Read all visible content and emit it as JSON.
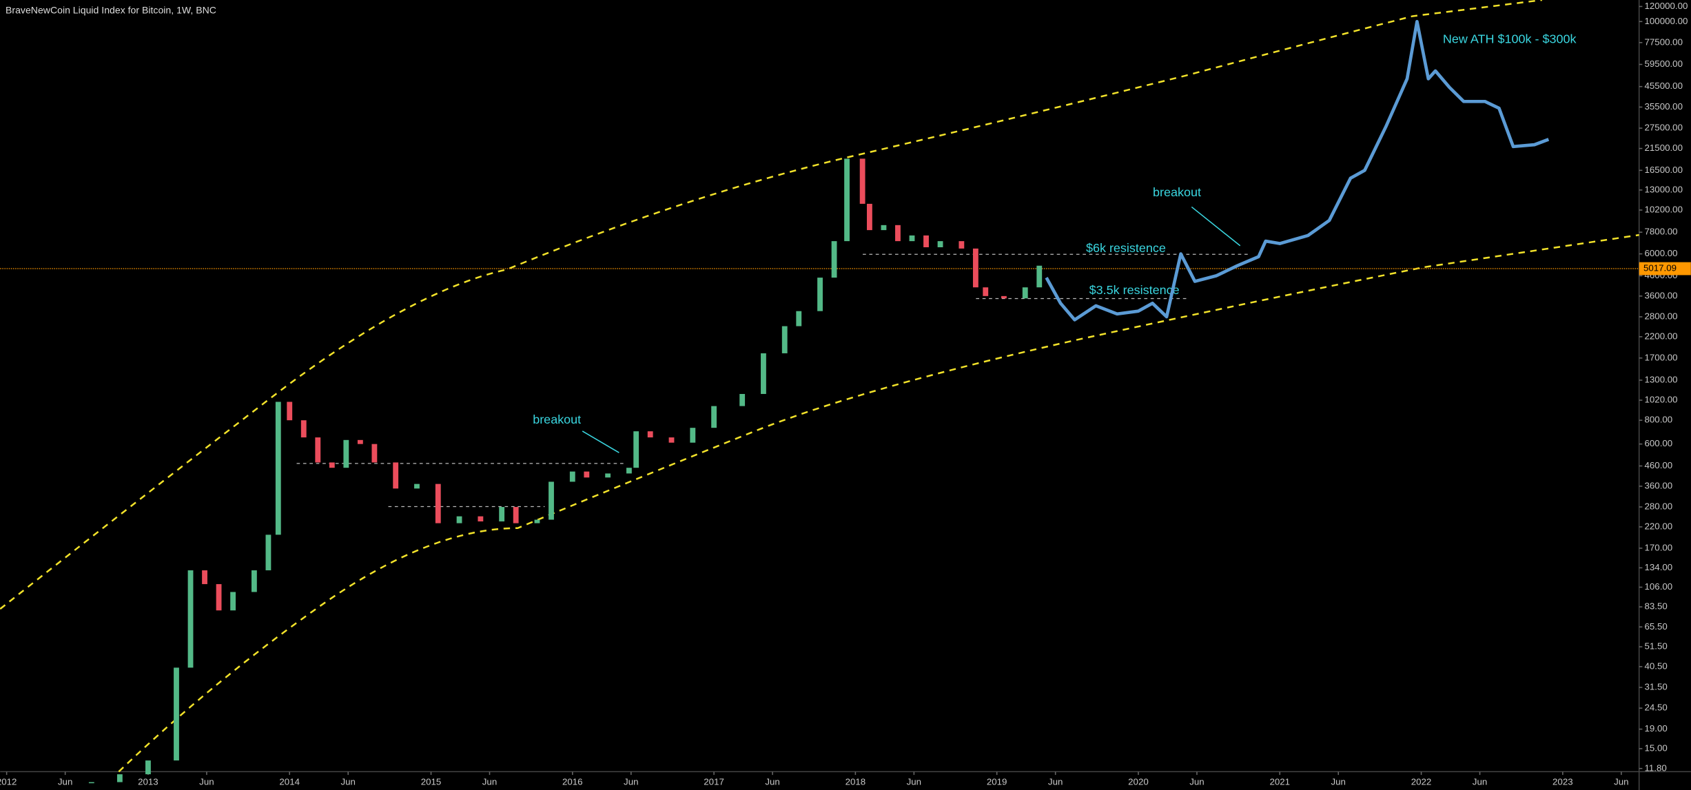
{
  "chart_data": {
    "type": "candlestick",
    "title": "BraveNewCoin Liquid Index for Bitcoin, 1W, BNC",
    "log_scale": true,
    "xlim": [
      2011.954,
      2023.54
    ],
    "ylim": [
      11.35,
      129800
    ],
    "last_price": 5017.09,
    "last_price_color": "#ff9800",
    "up_color": "#53b987",
    "down_color": "#eb4d5c",
    "series": [
      {
        "name": "BNC:BLX",
        "kind": "candles",
        "x": [
          2012.6,
          2012.8,
          2013.0,
          2013.2,
          2013.3,
          2013.4,
          2013.5,
          2013.6,
          2013.75,
          2013.85,
          2013.92,
          2014.0,
          2014.1,
          2014.2,
          2014.3,
          2014.4,
          2014.5,
          2014.6,
          2014.75,
          2014.9,
          2015.05,
          2015.2,
          2015.35,
          2015.5,
          2015.6,
          2015.75,
          2015.85,
          2016.0,
          2016.1,
          2016.25,
          2016.4,
          2016.45,
          2016.55,
          2016.7,
          2016.85,
          2017.0,
          2017.2,
          2017.35,
          2017.5,
          2017.6,
          2017.75,
          2017.85,
          2017.94,
          2018.05,
          2018.1,
          2018.2,
          2018.3,
          2018.4,
          2018.5,
          2018.6,
          2018.75,
          2018.85,
          2018.92,
          2019.05,
          2019.2,
          2019.3
        ],
        "values": [
          10,
          11,
          13,
          40,
          130,
          110,
          80,
          100,
          130,
          200,
          1000,
          800,
          650,
          480,
          450,
          630,
          600,
          480,
          350,
          370,
          230,
          250,
          235,
          280,
          230,
          240,
          380,
          430,
          400,
          420,
          450,
          700,
          650,
          610,
          730,
          950,
          1100,
          1800,
          2500,
          3000,
          4500,
          7000,
          19000,
          11000,
          8000,
          8500,
          7000,
          7500,
          6500,
          7000,
          6400,
          4000,
          3600,
          3500,
          4000,
          5200
        ]
      },
      {
        "name": "Projection",
        "kind": "line",
        "color": "#5b9bd5",
        "x": [
          2019.35,
          2019.45,
          2019.55,
          2019.7,
          2019.85,
          2020.0,
          2020.1,
          2020.2,
          2020.3,
          2020.4,
          2020.55,
          2020.7,
          2020.85,
          2020.9,
          2021.0,
          2021.2,
          2021.35,
          2021.5,
          2021.6,
          2021.75,
          2021.9,
          2021.97,
          2022.05,
          2022.1,
          2022.2,
          2022.3,
          2022.45,
          2022.55,
          2022.65,
          2022.8,
          2022.9
        ],
        "values": [
          4500,
          3300,
          2700,
          3200,
          2900,
          3000,
          3300,
          2800,
          6000,
          4300,
          4600,
          5200,
          5800,
          7000,
          6800,
          7500,
          9000,
          15000,
          16500,
          28000,
          50000,
          100000,
          50000,
          55000,
          45000,
          38000,
          38000,
          35000,
          22000,
          22500,
          24000
        ]
      }
    ],
    "annotations": [
      "breakout",
      "breakout",
      "$6k resistence",
      "$3.5k resistence",
      "New ATH $100k - $300k"
    ],
    "yticks": [
      {
        "value": 120000,
        "label": "120000.00"
      },
      {
        "value": 100000,
        "label": "100000.00"
      },
      {
        "value": 77500,
        "label": "77500.00"
      },
      {
        "value": 59500,
        "label": "59500.00"
      },
      {
        "value": 45500,
        "label": "45500.00"
      },
      {
        "value": 35500,
        "label": "35500.00"
      },
      {
        "value": 27500,
        "label": "27500.00"
      },
      {
        "value": 21500,
        "label": "21500.00"
      },
      {
        "value": 16500,
        "label": "16500.00"
      },
      {
        "value": 13000,
        "label": "13000.00"
      },
      {
        "value": 10200,
        "label": "10200.00"
      },
      {
        "value": 7800,
        "label": "7800.00"
      },
      {
        "value": 6000,
        "label": "6000.00"
      },
      {
        "value": 4600,
        "label": "4600.00"
      },
      {
        "value": 3600,
        "label": "3600.00"
      },
      {
        "value": 2800,
        "label": "2800.00"
      },
      {
        "value": 2200,
        "label": "2200.00"
      },
      {
        "value": 1700,
        "label": "1700.00"
      },
      {
        "value": 1300,
        "label": "1300.00"
      },
      {
        "value": 1020,
        "label": "1020.00"
      },
      {
        "value": 800,
        "label": "800.00"
      },
      {
        "value": 600,
        "label": "600.00"
      },
      {
        "value": 460,
        "label": "460.00"
      },
      {
        "value": 360,
        "label": "360.00"
      },
      {
        "value": 280,
        "label": "280.00"
      },
      {
        "value": 220,
        "label": "220.00"
      },
      {
        "value": 170,
        "label": "170.00"
      },
      {
        "value": 134,
        "label": "134.00"
      },
      {
        "value": 106,
        "label": "106.00"
      },
      {
        "value": 83.5,
        "label": "83.50"
      },
      {
        "value": 65.5,
        "label": "65.50"
      },
      {
        "value": 51.5,
        "label": "51.50"
      },
      {
        "value": 40.5,
        "label": "40.50"
      },
      {
        "value": 31.5,
        "label": "31.50"
      },
      {
        "value": 24.5,
        "label": "24.50"
      },
      {
        "value": 19,
        "label": "19.00"
      },
      {
        "value": 15,
        "label": "15.00"
      },
      {
        "value": 11.8,
        "label": "11.80"
      }
    ],
    "xticks": [
      {
        "value": 2012.0,
        "label": "2012"
      },
      {
        "value": 2012.414,
        "label": "Jun"
      },
      {
        "value": 2013.0,
        "label": "2013"
      },
      {
        "value": 2013.414,
        "label": "Jun"
      },
      {
        "value": 2014.0,
        "label": "2014"
      },
      {
        "value": 2014.414,
        "label": "Jun"
      },
      {
        "value": 2015.0,
        "label": "2015"
      },
      {
        "value": 2015.414,
        "label": "Jun"
      },
      {
        "value": 2016.0,
        "label": "2016"
      },
      {
        "value": 2016.414,
        "label": "Jun"
      },
      {
        "value": 2017.0,
        "label": "2017"
      },
      {
        "value": 2017.414,
        "label": "Jun"
      },
      {
        "value": 2018.0,
        "label": "2018"
      },
      {
        "value": 2018.414,
        "label": "Jun"
      },
      {
        "value": 2019.0,
        "label": "2019"
      },
      {
        "value": 2019.414,
        "label": "Jun"
      },
      {
        "value": 2020.0,
        "label": "2020"
      },
      {
        "value": 2020.414,
        "label": "Jun"
      },
      {
        "value": 2021.0,
        "label": "2021"
      },
      {
        "value": 2021.414,
        "label": "Jun"
      },
      {
        "value": 2022.0,
        "label": "2022"
      },
      {
        "value": 2022.414,
        "label": "Jun"
      },
      {
        "value": 2023.0,
        "label": "2023"
      },
      {
        "value": 2023.414,
        "label": "Jun"
      }
    ]
  }
}
